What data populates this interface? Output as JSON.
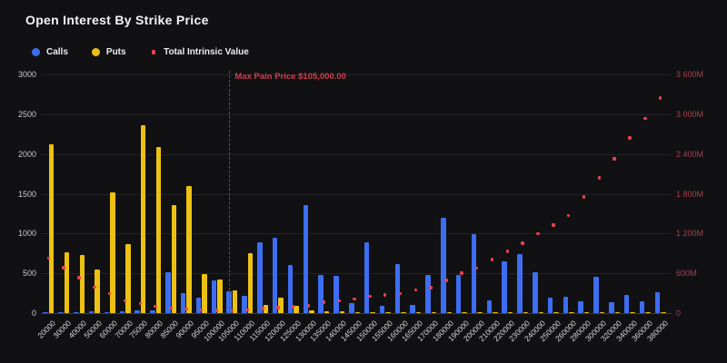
{
  "chart_data": {
    "type": "bar",
    "title": "Open Interest By Strike Price",
    "legend_position": "top-left",
    "grid": true,
    "categories": [
      "20000",
      "30000",
      "40000",
      "50000",
      "60000",
      "70000",
      "75000",
      "80000",
      "85000",
      "90000",
      "95000",
      "100000",
      "105000",
      "110000",
      "115000",
      "120000",
      "125000",
      "130000",
      "135000",
      "140000",
      "145000",
      "150000",
      "155000",
      "160000",
      "165000",
      "170000",
      "180000",
      "190000",
      "200000",
      "210000",
      "220000",
      "230000",
      "240000",
      "250000",
      "260000",
      "280000",
      "300000",
      "320000",
      "340000",
      "360000",
      "380000"
    ],
    "series": [
      {
        "name": "Calls",
        "type": "bar",
        "axis": "left",
        "color": "#3d6ef2",
        "values": [
          8,
          10,
          12,
          25,
          15,
          25,
          40,
          35,
          515,
          250,
          190,
          410,
          280,
          220,
          890,
          950,
          610,
          1360,
          485,
          470,
          125,
          890,
          90,
          615,
          105,
          475,
          1195,
          485,
          990,
          165,
          650,
          740,
          515,
          200,
          205,
          150,
          460,
          140,
          230,
          150,
          260
        ]
      },
      {
        "name": "Puts",
        "type": "bar",
        "axis": "left",
        "color": "#ecc113",
        "values": [
          2120,
          760,
          730,
          550,
          1520,
          865,
          2360,
          2085,
          1360,
          1600,
          495,
          425,
          290,
          750,
          105,
          190,
          90,
          35,
          25,
          20,
          15,
          15,
          10,
          10,
          8,
          8,
          8,
          5,
          8,
          5,
          5,
          5,
          5,
          3,
          3,
          3,
          5,
          3,
          3,
          3,
          3
        ]
      },
      {
        "name": "Total Intrinsic Value",
        "type": "scatter",
        "axis": "right",
        "unit": "M",
        "color": "#e4434f",
        "values": [
          825,
          685,
          535,
          390,
          295,
          185,
          145,
          100,
          78,
          60,
          50,
          40,
          32,
          48,
          68,
          85,
          98,
          110,
          165,
          185,
          215,
          250,
          275,
          295,
          350,
          380,
          490,
          600,
          680,
          810,
          930,
          1055,
          1195,
          1330,
          1470,
          1755,
          2040,
          2325,
          2640,
          2935,
          3245
        ]
      }
    ],
    "y_left": {
      "ticks": [
        0,
        500,
        1000,
        1500,
        2000,
        2500,
        3000
      ],
      "min": 0,
      "max": 3000,
      "color": "#c9c9cf"
    },
    "y_right": {
      "tick_values": [
        0,
        600,
        1200,
        1800,
        2400,
        3000,
        3600
      ],
      "tick_labels": [
        "0",
        "600M",
        "1 200M",
        "1 800M",
        "2 400M",
        "3 000M",
        "3 600M"
      ],
      "min": 0,
      "max": 3600,
      "color": "#a8404d"
    },
    "annotation": {
      "label": "Max Pain Price $105,000.00",
      "category": "105000",
      "color": "#cc3e4f"
    }
  }
}
